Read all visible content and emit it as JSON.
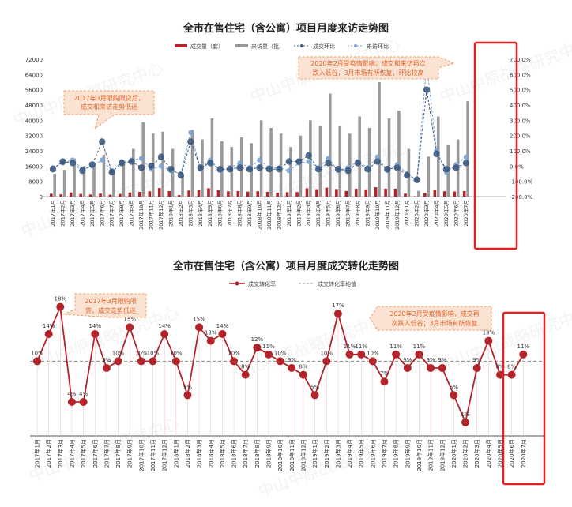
{
  "months": [
    "2017年1月",
    "2017年2月",
    "2017年3月",
    "2017年4月",
    "2017年5月",
    "2017年6月",
    "2017年7月",
    "2017年8月",
    "2017年9月",
    "2017年10月",
    "2017年11月",
    "2017年12月",
    "2018年1月",
    "2018年2月",
    "2018年3月",
    "2018年4月",
    "2018年5月",
    "2018年6月",
    "2018年7月",
    "2018年8月",
    "2018年9月",
    "2018年10月",
    "2018年11月",
    "2018年12月",
    "2019年1月",
    "2019年2月",
    "2019年3月",
    "2019年4月",
    "2019年5月",
    "2019年6月",
    "2019年7月",
    "2019年8月",
    "2019年9月",
    "2019年10月",
    "2019年11月",
    "2019年12月",
    "2020年1月",
    "2020年2月",
    "2020年3月",
    "2020年4月",
    "2020年5月",
    "2020年6月",
    "2020年7月"
  ],
  "watermark": "中山中原战略研究中心",
  "colors": {
    "deal": "#b3232a",
    "visit": "#999999",
    "deal_ratio": "#3d5a80",
    "visit_ratio": "#7aa3d2",
    "rate": "#b3232a",
    "avg": "#888888",
    "note_bg": "#fbe3d3",
    "note_border": "#f0a070",
    "note_text": "#e0652c",
    "highlight": "#e02020"
  },
  "chart1": {
    "title": "全市在售住宅（含公寓）项目月度来访走势图",
    "legend": {
      "deal": "成交量（套）",
      "visit": "来访量（批）",
      "deal_ratio": "成交环比",
      "visit_ratio": "来访环比"
    },
    "note1": [
      "2017年3月限购限贷后，",
      "成交和来访走势低迷"
    ],
    "note2": [
      "2020年2月受疫情影响，成交和来访再次",
      "跌入低谷，3月市场有所恢复，环比较高"
    ],
    "chart_data": {
      "type": "bar",
      "categories_ref": "months",
      "y_left": {
        "min": 0,
        "max": 72000,
        "ticks": [
          0,
          8000,
          16000,
          24000,
          32000,
          40000,
          48000,
          56000,
          64000,
          72000
        ]
      },
      "y_right": {
        "min": -200,
        "max": 700,
        "ticks": [
          -200,
          -100,
          0,
          100,
          200,
          300,
          400,
          500,
          600,
          700
        ],
        "tick_labels": [
          "-200.0%",
          "-100.0%",
          "0.0%",
          "100.0%",
          "200.0%",
          "300.0%",
          "400.0%",
          "500.0%",
          "600.0%",
          "700.0%"
        ]
      },
      "series": [
        {
          "name": "成交量（套）",
          "type": "bar",
          "axis": "left",
          "values": [
            1500,
            1200,
            2200,
            1400,
            1100,
            1600,
            1000,
            1400,
            2200,
            2500,
            2800,
            4500,
            2900,
            800,
            3200,
            3400,
            4400,
            3300,
            2800,
            2900,
            2600,
            2800,
            2500,
            2100,
            2300,
            2400,
            4400,
            3900,
            4700,
            4000,
            3000,
            4200,
            3800,
            4900,
            4200,
            4200,
            1600,
            200,
            2000,
            3500,
            2800,
            2700,
            2900
          ]
        },
        {
          "name": "来访量（批）",
          "type": "bar",
          "axis": "left",
          "values": [
            12000,
            14000,
            20000,
            16000,
            16000,
            22000,
            14000,
            18000,
            25000,
            39000,
            33000,
            34000,
            25000,
            11000,
            35000,
            30000,
            41000,
            29000,
            26000,
            31000,
            28000,
            40000,
            36000,
            33000,
            26000,
            32000,
            40000,
            37000,
            54000,
            37000,
            33000,
            42000,
            36000,
            60000,
            41000,
            45000,
            25000,
            3000,
            21000,
            42000,
            27000,
            30000,
            50000
          ]
        },
        {
          "name": "成交环比",
          "type": "line",
          "axis": "right",
          "values": [
            -20,
            30,
            20,
            -30,
            10,
            160,
            -40,
            20,
            30,
            -10,
            0,
            60,
            -20,
            -60,
            160,
            -10,
            20,
            -20,
            -20,
            -10,
            -20,
            -10,
            -20,
            -20,
            30,
            30,
            70,
            -20,
            20,
            -20,
            -30,
            20,
            -20,
            30,
            -20,
            -10,
            -60,
            -90,
            500,
            80,
            -20,
            -10,
            20
          ]
        },
        {
          "name": "来访环比",
          "type": "line",
          "axis": "right",
          "values": [
            -10,
            20,
            40,
            -20,
            0,
            40,
            -30,
            30,
            40,
            50,
            -20,
            0,
            -30,
            -50,
            220,
            -20,
            40,
            -30,
            -10,
            20,
            -10,
            40,
            -10,
            -10,
            -30,
            20,
            30,
            -10,
            50,
            -30,
            -10,
            30,
            -10,
            60,
            -30,
            10,
            -50,
            -90,
            670,
            100,
            -40,
            10,
            60
          ]
        }
      ]
    }
  },
  "chart2": {
    "title": "全市在售住宅（含公寓）项目月度成交转化走势图",
    "legend": {
      "rate": "成交转化率",
      "avg": "成交转化率均值"
    },
    "note1": [
      "2017年3月限购限",
      "贷，成交走势低迷"
    ],
    "note2": [
      "2020年2月受疫情影响，成交再",
      "次跌入低谷；3月市场有所恢复"
    ],
    "chart_data": {
      "type": "line",
      "categories_ref": "months",
      "ylim": [
        -1,
        19
      ],
      "average": 10,
      "series": [
        {
          "name": "成交转化率",
          "values": [
            10,
            14,
            18,
            4,
            4,
            14,
            9,
            10,
            15,
            10,
            10,
            14,
            10,
            5,
            15,
            13,
            14,
            10,
            8,
            12,
            11,
            10,
            9,
            8,
            5,
            10,
            17,
            11,
            11,
            10,
            7,
            11,
            9,
            11,
            9,
            9,
            5,
            1,
            9,
            13,
            8,
            8,
            11
          ],
          "labels": [
            "10%",
            "14%",
            "18%",
            "4%",
            "4%",
            "14%",
            "9%",
            "10%",
            "15%",
            "10%",
            "10%",
            "14%",
            "10%",
            "5%",
            "15%",
            "13%",
            "14%",
            "10%",
            "8%",
            "12%",
            "11%",
            "10%",
            "9%",
            "8%",
            "5%",
            "10%",
            "17%",
            "11%",
            "11%",
            "10%",
            "7%",
            "11%",
            "9%",
            "11%",
            "9%",
            "9%",
            "5%",
            "1%",
            "9%",
            "13%",
            "8%",
            "8%",
            "11%"
          ]
        }
      ]
    }
  }
}
